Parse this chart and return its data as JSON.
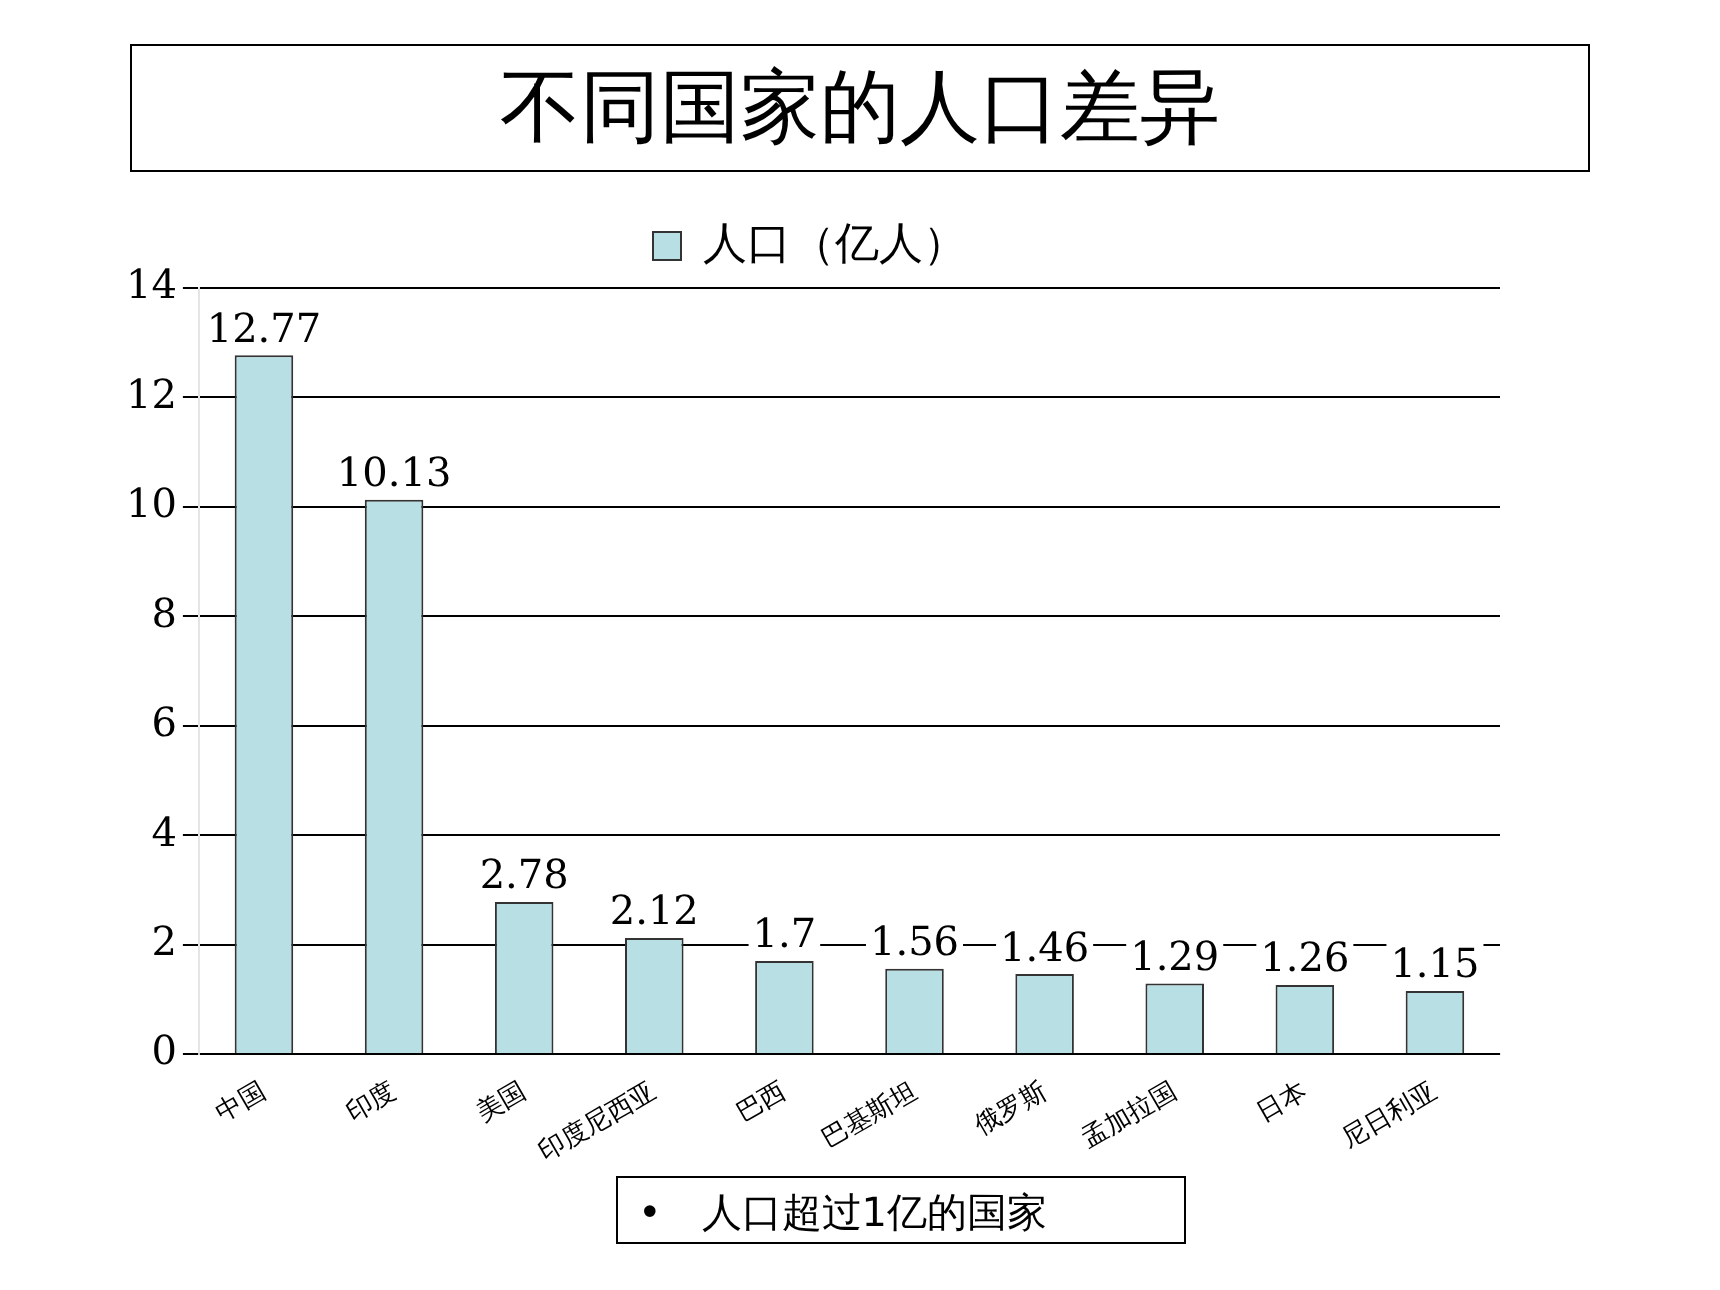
{
  "chart_data": {
    "type": "bar",
    "title": "不同国家的人口差异",
    "categories": [
      "中国",
      "印度",
      "美国",
      "印度尼西亚",
      "巴西",
      "巴基斯坦",
      "俄罗斯",
      "孟加拉国",
      "日本",
      "尼日利亚"
    ],
    "series": [
      {
        "name": "人口（亿人）",
        "color": "#b8e0e4",
        "values": [
          12.77,
          10.13,
          2.78,
          2.12,
          1.7,
          1.56,
          1.46,
          1.29,
          1.26,
          1.15
        ]
      }
    ],
    "ylim": [
      0,
      14
    ],
    "yticks": [
      0,
      2,
      4,
      6,
      8,
      10,
      12,
      14
    ],
    "grid": "y",
    "legend": "top",
    "data_labels": true,
    "annotations": [
      "• 人口超过1亿的国家"
    ]
  }
}
